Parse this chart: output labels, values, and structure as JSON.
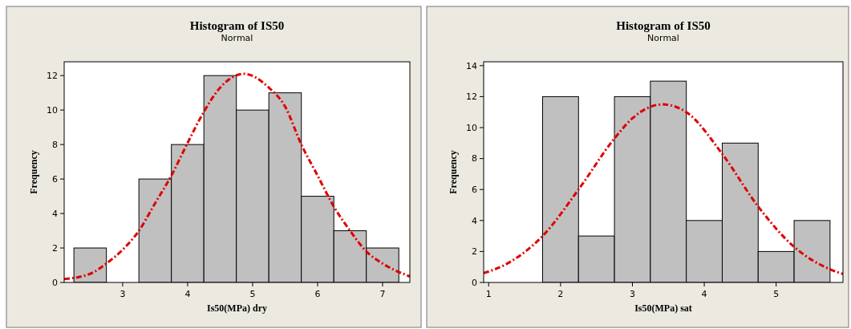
{
  "chart_data": [
    {
      "type": "histogram",
      "title": "Histogram of IS50",
      "subtitle": "Normal",
      "xlabel": "Is50(MPa) dry",
      "ylabel": "Frequency",
      "bins": [
        2.25,
        2.75,
        3.25,
        3.75,
        4.25,
        4.75,
        5.25,
        5.75,
        6.25,
        6.75,
        7.25
      ],
      "xlim": [
        2.1,
        7.42
      ],
      "xticks": [
        3,
        4,
        5,
        6,
        7
      ],
      "ylim": [
        0,
        12.8
      ],
      "yticks": [
        0,
        2,
        4,
        6,
        8,
        10,
        12
      ],
      "series": [
        {
          "color": "#c0c0c0",
          "values": [
            2,
            0,
            6,
            8,
            12,
            10,
            11,
            5,
            3,
            2
          ]
        },
        {
          "type": "line",
          "color": "#e00000",
          "line_style": "dashed",
          "x": [
            2.1,
            2.5,
            2.75,
            3,
            3.25,
            3.5,
            3.75,
            4,
            4.25,
            4.5,
            4.87,
            5.25,
            5.5,
            5.75,
            6,
            6.25,
            6.5,
            6.75,
            7,
            7.42
          ],
          "values": [
            0.2,
            0.5,
            1.1,
            1.9,
            3.0,
            4.6,
            6.2,
            8.1,
            9.9,
            11.3,
            12.1,
            11.3,
            10.2,
            8.0,
            6.2,
            4.4,
            3.0,
            1.8,
            1.1,
            0.35
          ]
        }
      ]
    },
    {
      "type": "histogram",
      "title": "Histogram of IS50",
      "subtitle": "Normal",
      "xlabel": "Is50(MPa) sat",
      "ylabel": "Frequency",
      "bins": [
        1.75,
        2.25,
        2.75,
        3.25,
        3.75,
        4.25,
        4.75,
        5.25,
        5.75
      ],
      "xlim": [
        0.93,
        5.93
      ],
      "xticks": [
        1,
        2,
        3,
        4,
        5
      ],
      "ylim": [
        0,
        14.25
      ],
      "yticks": [
        0,
        2,
        4,
        6,
        8,
        10,
        12,
        14
      ],
      "series": [
        {
          "color": "#c0c0c0",
          "values": [
            12,
            3,
            12,
            13,
            4,
            9,
            2,
            4
          ]
        },
        {
          "type": "line",
          "color": "#e00000",
          "line_style": "dashed",
          "x": [
            0.93,
            1.25,
            1.75,
            2.25,
            2.75,
            3.0,
            3.42,
            3.75,
            4.25,
            4.75,
            5.25,
            5.75,
            5.93
          ],
          "values": [
            0.6,
            1.2,
            3.0,
            6.0,
            9.3,
            10.6,
            11.5,
            11.0,
            8.3,
            4.9,
            2.3,
            0.85,
            0.55
          ]
        }
      ]
    }
  ]
}
